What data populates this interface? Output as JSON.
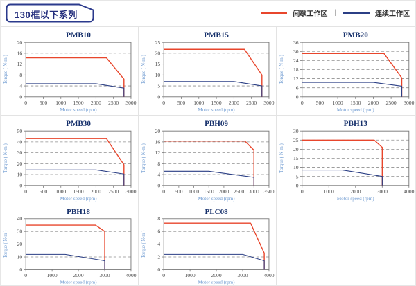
{
  "header": {
    "title": "130框以下系列",
    "legend": [
      {
        "label": "间歇工作区",
        "color": "#E8462C"
      },
      {
        "label": "连续工作区",
        "color": "#2B3F85"
      }
    ],
    "legend_separator": "|"
  },
  "palette": {
    "intermittent_red": "#E8462C",
    "continuous_blue": "#2B3F85",
    "chart_title": "#16306B",
    "axis_label_blue": "#6F9BD1",
    "tick_text": "#4A4A4A",
    "panel_border": "#E3E3E3",
    "tag_border": "#2B3A8C"
  },
  "chart_data": [
    {
      "type": "line",
      "title": "PMB10",
      "xlabel": "Motor speed (rpm)",
      "ylabel": "Torque ( N·m )",
      "xlim": [
        0,
        3000
      ],
      "xtick_step": 500,
      "ylim": [
        0,
        20
      ],
      "ytick_step": 4,
      "grid": "horizontal-dashed",
      "legend_position": "none",
      "series": [
        {
          "name": "间歇工作区",
          "color": "#E8462C",
          "points": [
            [
              0,
              14.3
            ],
            [
              2300,
              14.3
            ],
            [
              2800,
              6.5
            ],
            [
              2800,
              0
            ]
          ]
        },
        {
          "name": "连续工作区",
          "color": "#2B3F85",
          "points": [
            [
              0,
              4.8
            ],
            [
              2000,
              4.8
            ],
            [
              2800,
              3.2
            ],
            [
              2800,
              0
            ]
          ]
        }
      ]
    },
    {
      "type": "line",
      "title": "PMB15",
      "xlabel": "Motor speed (rpm)",
      "ylabel": "Torque ( N·m )",
      "xlim": [
        0,
        3000
      ],
      "xtick_step": 500,
      "ylim": [
        0,
        25
      ],
      "ytick_step": 5,
      "grid": "horizontal-dashed",
      "legend_position": "none",
      "series": [
        {
          "name": "间歇工作区",
          "color": "#E8462C",
          "points": [
            [
              0,
              21.8
            ],
            [
              2300,
              21.8
            ],
            [
              2800,
              10
            ],
            [
              2800,
              0
            ]
          ]
        },
        {
          "name": "连续工作区",
          "color": "#2B3F85",
          "points": [
            [
              0,
              7
            ],
            [
              2000,
              7
            ],
            [
              2800,
              5
            ],
            [
              2800,
              0
            ]
          ]
        }
      ]
    },
    {
      "type": "line",
      "title": "PMB20",
      "xlabel": "Motor speed (rpm)",
      "ylabel": "Torque ( N·m )",
      "xlim": [
        0,
        3000
      ],
      "xtick_step": 500,
      "ylim": [
        0,
        36
      ],
      "ytick_step": 6,
      "grid": "horizontal-dashed",
      "legend_position": "none",
      "series": [
        {
          "name": "间歇工作区",
          "color": "#E8462C",
          "points": [
            [
              0,
              28.6
            ],
            [
              2300,
              28.6
            ],
            [
              2800,
              12.5
            ],
            [
              2800,
              0
            ]
          ]
        },
        {
          "name": "连续工作区",
          "color": "#2B3F85",
          "points": [
            [
              0,
              9.5
            ],
            [
              2000,
              9.5
            ],
            [
              2800,
              7
            ],
            [
              2800,
              0
            ]
          ]
        }
      ]
    },
    {
      "type": "line",
      "title": "PMB30",
      "xlabel": "Motor speed (rpm)",
      "ylabel": "Torque ( N·m )",
      "xlim": [
        0,
        3000
      ],
      "xtick_step": 500,
      "ylim": [
        0,
        50
      ],
      "ytick_step": 10,
      "grid": "horizontal-dashed",
      "legend_position": "none",
      "series": [
        {
          "name": "间歇工作区",
          "color": "#E8462C",
          "points": [
            [
              0,
              43
            ],
            [
              2300,
              43
            ],
            [
              2800,
              19
            ],
            [
              2800,
              0
            ]
          ]
        },
        {
          "name": "连续工作区",
          "color": "#2B3F85",
          "points": [
            [
              0,
              14.3
            ],
            [
              2000,
              14.3
            ],
            [
              2800,
              10.5
            ],
            [
              2800,
              0
            ]
          ]
        }
      ]
    },
    {
      "type": "line",
      "title": "PBH09",
      "xlabel": "Motor speed (rpm)",
      "ylabel": "Torque ( N·m )",
      "xlim": [
        0,
        3500
      ],
      "xtick_step": 500,
      "ylim": [
        0,
        20
      ],
      "ytick_step": 4,
      "grid": "horizontal-dashed",
      "legend_position": "none",
      "series": [
        {
          "name": "间歇工作区",
          "color": "#E8462C",
          "points": [
            [
              0,
              16.3
            ],
            [
              2700,
              16.3
            ],
            [
              3000,
              13
            ],
            [
              3000,
              0
            ]
          ]
        },
        {
          "name": "连续工作区",
          "color": "#2B3F85",
          "points": [
            [
              0,
              5.2
            ],
            [
              1500,
              5.2
            ],
            [
              3000,
              3
            ],
            [
              3000,
              0
            ]
          ]
        }
      ]
    },
    {
      "type": "line",
      "title": "PBH13",
      "xlabel": "Motor speed (rpm)",
      "ylabel": "Torque ( N·m )",
      "xlim": [
        0,
        4000
      ],
      "xtick_step": 1000,
      "ylim": [
        0,
        30
      ],
      "ytick_step": 5,
      "grid": "horizontal-dashed",
      "legend_position": "none",
      "series": [
        {
          "name": "间歇工作区",
          "color": "#E8462C",
          "points": [
            [
              0,
              25
            ],
            [
              2700,
              25
            ],
            [
              3000,
              21
            ],
            [
              3000,
              0
            ]
          ]
        },
        {
          "name": "连续工作区",
          "color": "#2B3F85",
          "points": [
            [
              0,
              8.5
            ],
            [
              1500,
              8.5
            ],
            [
              3000,
              5
            ],
            [
              3000,
              0
            ]
          ]
        }
      ]
    },
    {
      "type": "line",
      "title": "PBH18",
      "xlabel": "Motor speed (rpm)",
      "ylabel": "Torque ( N·m )",
      "xlim": [
        0,
        4000
      ],
      "xtick_step": 1000,
      "ylim": [
        0,
        40
      ],
      "ytick_step": 10,
      "grid": "horizontal-dashed",
      "legend_position": "none",
      "series": [
        {
          "name": "间歇工作区",
          "color": "#E8462C",
          "points": [
            [
              0,
              35
            ],
            [
              2650,
              35
            ],
            [
              3000,
              30
            ],
            [
              3000,
              0
            ]
          ]
        },
        {
          "name": "连续工作区",
          "color": "#2B3F85",
          "points": [
            [
              0,
              12
            ],
            [
              1500,
              12
            ],
            [
              3000,
              7
            ],
            [
              3000,
              0
            ]
          ]
        }
      ]
    },
    {
      "type": "line",
      "title": "PLC08",
      "xlabel": "Motor speed (rpm)",
      "ylabel": "Torque ( N·m )",
      "xlim": [
        0,
        4000
      ],
      "xtick_step": 1000,
      "ylim": [
        0,
        8
      ],
      "ytick_step": 2,
      "grid": "horizontal-dashed",
      "legend_position": "none",
      "series": [
        {
          "name": "间歇工作区",
          "color": "#E8462C",
          "points": [
            [
              0,
              7.3
            ],
            [
              3300,
              7.3
            ],
            [
              3820,
              2.6
            ],
            [
              3820,
              0
            ]
          ]
        },
        {
          "name": "连续工作区",
          "color": "#2B3F85",
          "points": [
            [
              0,
              2.4
            ],
            [
              3000,
              2.4
            ],
            [
              3820,
              1.4
            ],
            [
              3820,
              0
            ]
          ]
        }
      ]
    }
  ]
}
